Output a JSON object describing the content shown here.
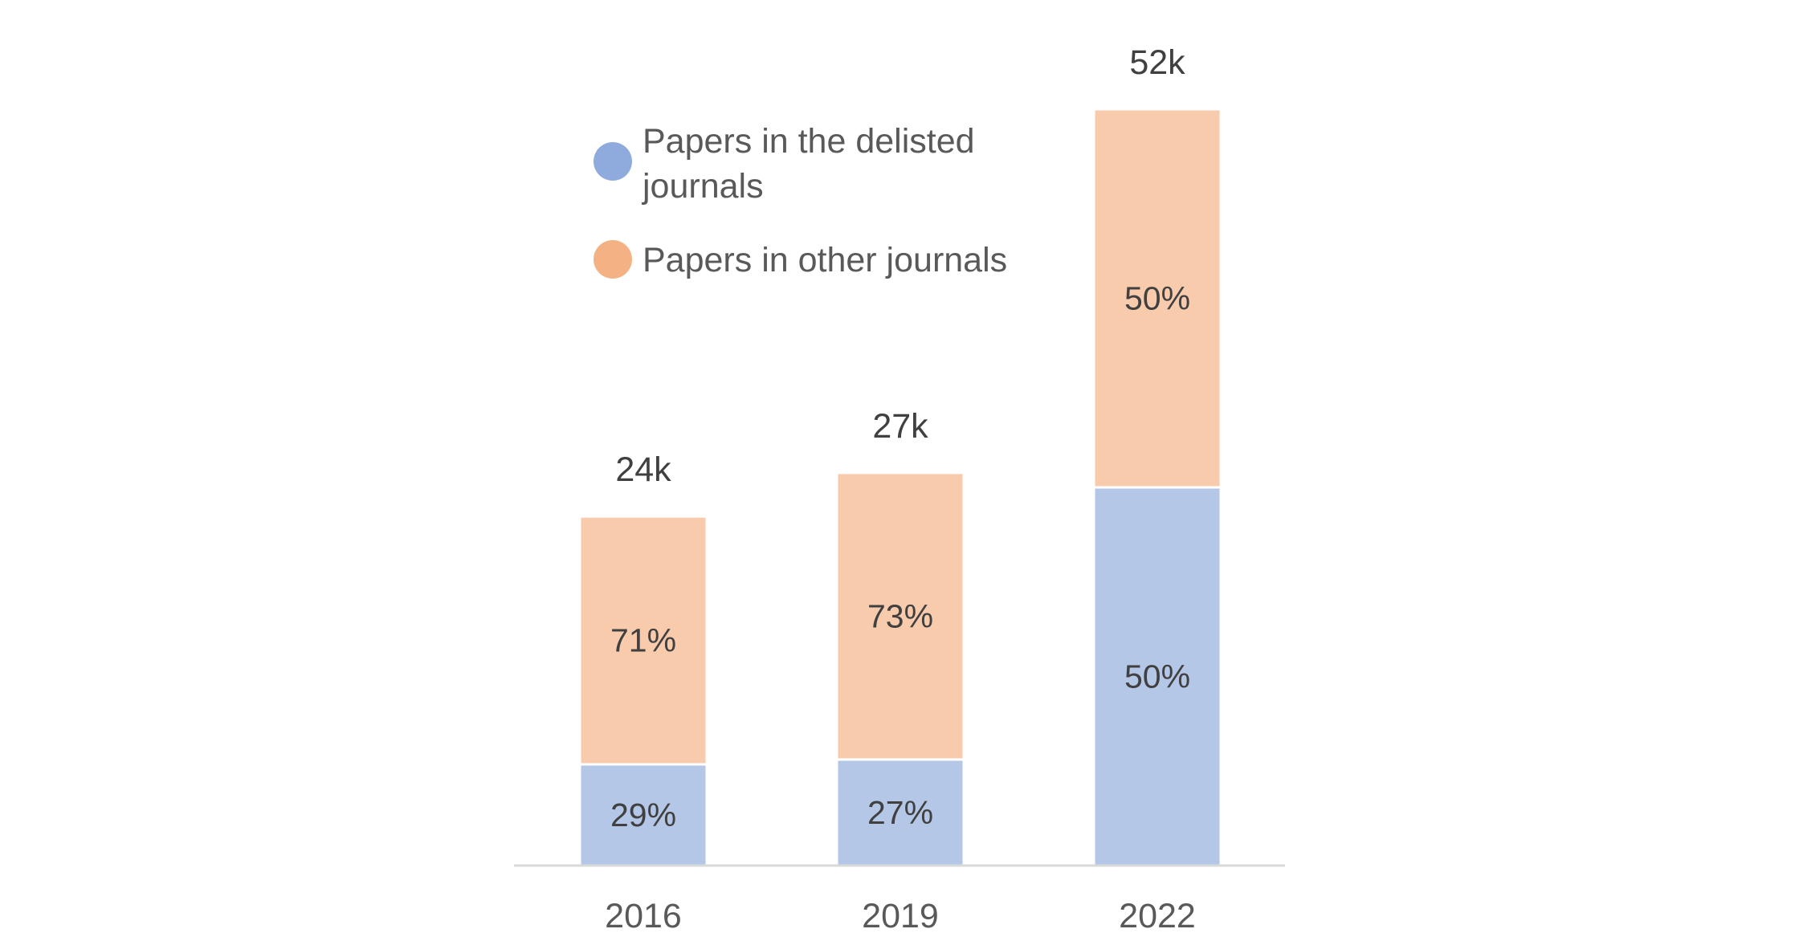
{
  "chart_data": {
    "type": "bar",
    "stacked": true,
    "title": "",
    "xlabel": "",
    "ylabel": "",
    "categories": [
      "2016",
      "2019",
      "2022"
    ],
    "totals": [
      24,
      27,
      52
    ],
    "total_labels": [
      "24k",
      "27k",
      "52k"
    ],
    "series": [
      {
        "name": "Papers in the delisted journals",
        "color": "#b4c7e7",
        "marker_color": "#8faadc",
        "percent": [
          29,
          27,
          50
        ],
        "labels": [
          "29%",
          "27%",
          "50%"
        ]
      },
      {
        "name": "Papers in other journals",
        "color": "#f8cbad",
        "marker_color": "#f4b183",
        "percent": [
          71,
          73,
          50
        ],
        "labels": [
          "71%",
          "73%",
          "50%"
        ]
      }
    ],
    "ylim": [
      0,
      52
    ],
    "grid": false,
    "legend_position": "top-left"
  }
}
